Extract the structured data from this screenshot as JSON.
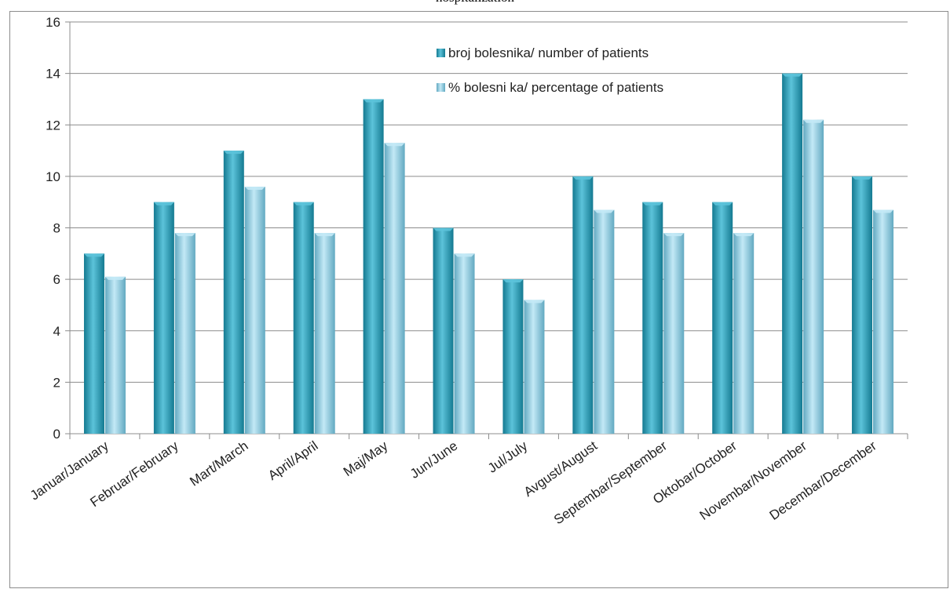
{
  "caption": "hospitalization",
  "colors": {
    "series1": "#2a9bb5",
    "series1_dark": "#147a91",
    "series1_light": "#5cc3da",
    "series2": "#8fd0e6",
    "series2_dark": "#62a9c1",
    "series2_light": "#c3e9f6",
    "grid": "#8c8c8c"
  },
  "chart_data": {
    "type": "bar",
    "categories": [
      "Januar/January",
      "Februar/February",
      "Mart/March",
      "April/April",
      "Maj/May",
      "Jun/June",
      "Jul/July",
      "Avgust/August",
      "Septembar/September",
      "Oktobar/October",
      "Novembar/November",
      "Decembar/December"
    ],
    "series": [
      {
        "name": "broj bolesnika/ number of patients",
        "values": [
          7,
          9,
          11,
          9,
          13,
          8,
          6,
          10,
          9,
          9,
          14,
          10
        ]
      },
      {
        "name": "% bolesni ka/ percentage of patients",
        "values": [
          6.1,
          7.8,
          9.6,
          7.8,
          11.3,
          7.0,
          5.2,
          8.7,
          7.8,
          7.8,
          12.2,
          8.7
        ]
      }
    ],
    "ylim": [
      0,
      16
    ],
    "yticks": [
      0,
      2,
      4,
      6,
      8,
      10,
      12,
      14,
      16
    ],
    "grid": true,
    "legend_position": "top-right",
    "xlabel": "",
    "ylabel": ""
  }
}
